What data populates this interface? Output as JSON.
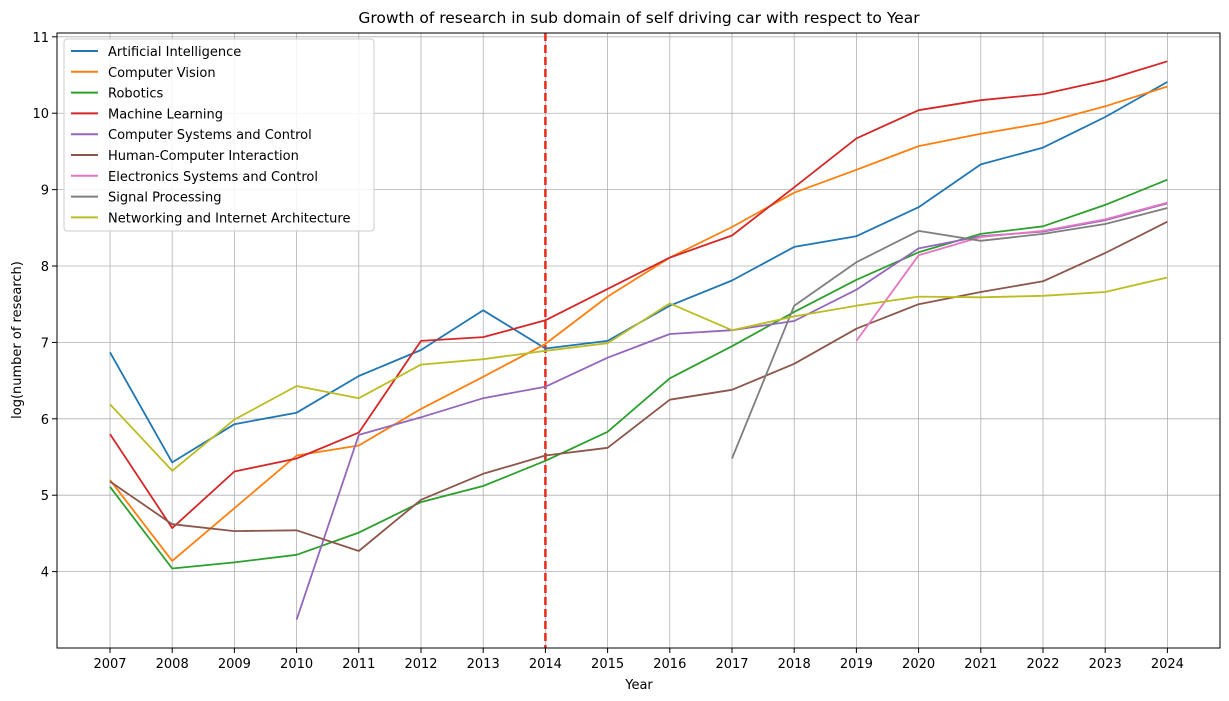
{
  "chart_data": {
    "type": "line",
    "title": "Growth of research in sub domain of self driving car with respect to Year",
    "xlabel": "Year",
    "ylabel": "log(number of research)",
    "categories": [
      "2007",
      "2008",
      "2009",
      "2010",
      "2011",
      "2012",
      "2013",
      "2014",
      "2015",
      "2016",
      "2017",
      "2018",
      "2019",
      "2020",
      "2021",
      "2022",
      "2023",
      "2024"
    ],
    "ylim": [
      3.0,
      11.05
    ],
    "yticks": [
      4,
      5,
      6,
      7,
      8,
      9,
      10,
      11
    ],
    "grid": true,
    "legend_position": "top-left",
    "vline": {
      "x": "2014",
      "color": "#e8291c",
      "style": "dashed"
    },
    "series": [
      {
        "name": "Artificial Intelligence",
        "color": "#1f77b4",
        "values": [
          6.87,
          5.43,
          5.93,
          6.08,
          6.56,
          6.9,
          7.42,
          6.92,
          7.02,
          7.48,
          7.81,
          8.25,
          8.39,
          8.77,
          9.33,
          9.55,
          9.95,
          10.41
        ]
      },
      {
        "name": "Computer Vision",
        "color": "#ff7f0e",
        "values": [
          5.2,
          4.14,
          4.83,
          5.52,
          5.65,
          6.13,
          6.55,
          6.98,
          7.6,
          8.11,
          8.51,
          8.96,
          9.26,
          9.57,
          9.73,
          9.87,
          10.09,
          10.35
        ]
      },
      {
        "name": "Robotics",
        "color": "#2ca02c",
        "values": [
          5.11,
          4.04,
          4.12,
          4.22,
          4.51,
          4.91,
          5.12,
          5.45,
          5.83,
          6.53,
          6.95,
          7.4,
          7.82,
          8.18,
          8.42,
          8.52,
          8.8,
          9.13
        ]
      },
      {
        "name": "Machine Learning",
        "color": "#d62728",
        "values": [
          5.8,
          4.57,
          5.31,
          5.48,
          5.82,
          7.02,
          7.07,
          7.29,
          7.7,
          8.11,
          8.4,
          9.03,
          9.67,
          10.04,
          10.17,
          10.25,
          10.43,
          10.68
        ]
      },
      {
        "name": "Computer Systems and Control",
        "color": "#9467bd",
        "values": [
          null,
          null,
          null,
          3.37,
          5.79,
          6.02,
          6.27,
          6.42,
          6.8,
          7.11,
          7.16,
          7.28,
          7.69,
          8.23,
          8.39,
          8.45,
          8.6,
          8.82
        ]
      },
      {
        "name": "Human-Computer Interaction",
        "color": "#8c564b",
        "values": [
          5.18,
          4.62,
          4.53,
          4.54,
          4.27,
          4.94,
          5.28,
          5.52,
          5.62,
          6.25,
          6.38,
          6.72,
          7.18,
          7.5,
          7.66,
          7.8,
          8.17,
          8.58
        ]
      },
      {
        "name": "Electronics Systems and Control",
        "color": "#e377c2",
        "values": [
          null,
          null,
          null,
          null,
          null,
          null,
          null,
          null,
          null,
          null,
          null,
          null,
          7.02,
          8.14,
          8.38,
          8.46,
          8.61,
          8.83
        ]
      },
      {
        "name": "Signal Processing",
        "color": "#7f7f7f",
        "values": [
          null,
          null,
          null,
          null,
          null,
          null,
          null,
          null,
          null,
          null,
          5.48,
          7.48,
          8.05,
          8.46,
          8.33,
          8.42,
          8.55,
          8.76
        ]
      },
      {
        "name": "Networking and Internet Architecture",
        "color": "#bcbd22",
        "values": [
          6.19,
          5.32,
          5.99,
          6.43,
          6.27,
          6.71,
          6.78,
          6.89,
          6.99,
          7.51,
          7.16,
          7.34,
          7.48,
          7.6,
          7.59,
          7.61,
          7.66,
          7.85
        ]
      }
    ]
  }
}
